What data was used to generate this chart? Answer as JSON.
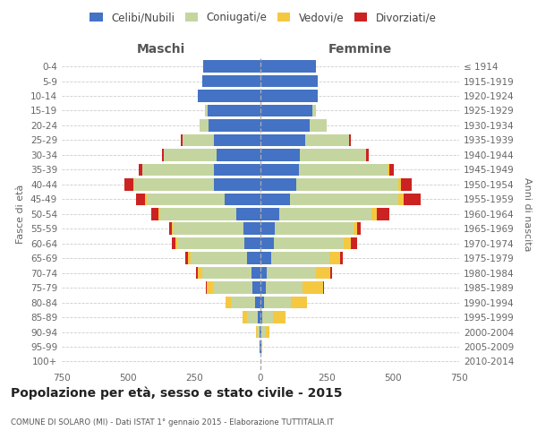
{
  "age_groups": [
    "0-4",
    "5-9",
    "10-14",
    "15-19",
    "20-24",
    "25-29",
    "30-34",
    "35-39",
    "40-44",
    "45-49",
    "50-54",
    "55-59",
    "60-64",
    "65-69",
    "70-74",
    "75-79",
    "80-84",
    "85-89",
    "90-94",
    "95-99",
    "100+"
  ],
  "birth_years": [
    "2010-2014",
    "2005-2009",
    "2000-2004",
    "1995-1999",
    "1990-1994",
    "1985-1989",
    "1980-1984",
    "1975-1979",
    "1970-1974",
    "1965-1969",
    "1960-1964",
    "1955-1959",
    "1950-1954",
    "1945-1949",
    "1940-1944",
    "1935-1939",
    "1930-1934",
    "1925-1929",
    "1920-1924",
    "1915-1919",
    "≤ 1914"
  ],
  "male_celibe": [
    215,
    220,
    235,
    200,
    195,
    175,
    165,
    175,
    175,
    135,
    90,
    65,
    60,
    50,
    35,
    30,
    20,
    10,
    5,
    2,
    0
  ],
  "male_coniugato": [
    0,
    0,
    0,
    10,
    35,
    120,
    200,
    270,
    300,
    295,
    290,
    265,
    255,
    215,
    185,
    150,
    90,
    40,
    8,
    2,
    0
  ],
  "male_vedovo": [
    0,
    0,
    0,
    0,
    0,
    0,
    0,
    0,
    5,
    5,
    5,
    5,
    5,
    10,
    15,
    22,
    22,
    18,
    5,
    0,
    0
  ],
  "male_divorziato": [
    0,
    0,
    0,
    0,
    0,
    5,
    5,
    15,
    32,
    35,
    28,
    10,
    15,
    10,
    8,
    5,
    0,
    0,
    0,
    0,
    0
  ],
  "female_celibe": [
    210,
    215,
    215,
    195,
    185,
    170,
    150,
    145,
    135,
    110,
    70,
    55,
    50,
    40,
    25,
    20,
    15,
    8,
    5,
    2,
    0
  ],
  "female_coniugato": [
    0,
    0,
    0,
    15,
    65,
    165,
    250,
    335,
    385,
    410,
    350,
    295,
    265,
    220,
    185,
    140,
    100,
    40,
    15,
    3,
    0
  ],
  "female_vedova": [
    0,
    0,
    0,
    0,
    0,
    0,
    0,
    5,
    10,
    20,
    20,
    15,
    25,
    40,
    55,
    75,
    62,
    45,
    15,
    3,
    0
  ],
  "female_divorziata": [
    0,
    0,
    0,
    0,
    0,
    5,
    10,
    20,
    40,
    65,
    45,
    15,
    25,
    10,
    5,
    5,
    0,
    0,
    0,
    0,
    0
  ],
  "colors": {
    "celibe": "#4472c4",
    "coniugato": "#c5d5a0",
    "vedovo": "#f5c842",
    "divorziato": "#cc2222"
  },
  "title_main": "Popolazione per età, sesso e stato civile - 2015",
  "title_sub": "COMUNE DI SOLARO (MI) - Dati ISTAT 1° gennaio 2015 - Elaborazione TUTTITALIA.IT",
  "ylabel_left": "Fasce di età",
  "ylabel_right": "Anni di nascita",
  "xlim": 750,
  "background_color": "#ffffff",
  "grid_color": "#cccccc"
}
